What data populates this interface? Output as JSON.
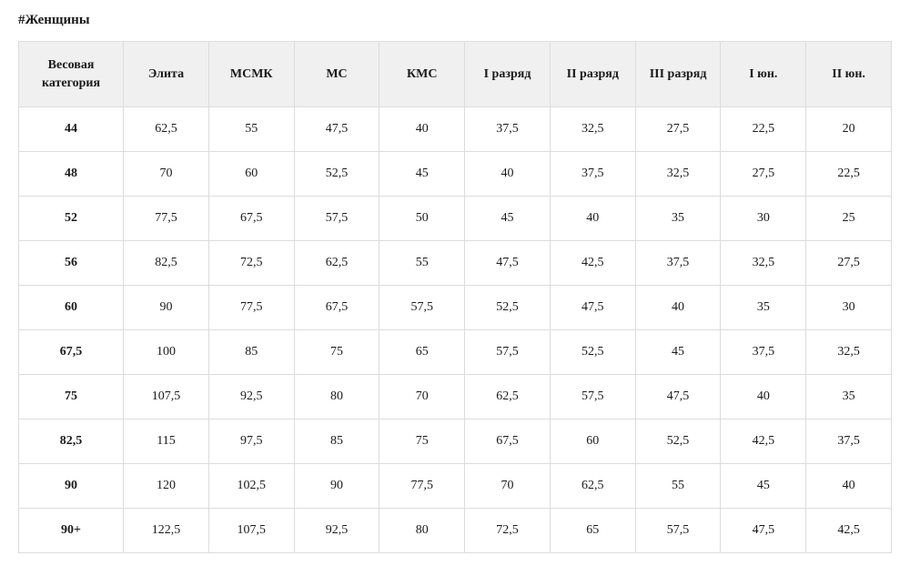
{
  "heading": "#Женщины",
  "table": {
    "columns": [
      "Весовая категория",
      "Элита",
      "МСМК",
      "МС",
      "КМС",
      "I разряд",
      "II разряд",
      "III разряд",
      "I юн.",
      "II юн."
    ],
    "rows": [
      [
        "44",
        "62,5",
        "55",
        "47,5",
        "40",
        "37,5",
        "32,5",
        "27,5",
        "22,5",
        "20"
      ],
      [
        "48",
        "70",
        "60",
        "52,5",
        "45",
        "40",
        "37,5",
        "32,5",
        "27,5",
        "22,5"
      ],
      [
        "52",
        "77,5",
        "67,5",
        "57,5",
        "50",
        "45",
        "40",
        "35",
        "30",
        "25"
      ],
      [
        "56",
        "82,5",
        "72,5",
        "62,5",
        "55",
        "47,5",
        "42,5",
        "37,5",
        "32,5",
        "27,5"
      ],
      [
        "60",
        "90",
        "77,5",
        "67,5",
        "57,5",
        "52,5",
        "47,5",
        "40",
        "35",
        "30"
      ],
      [
        "67,5",
        "100",
        "85",
        "75",
        "65",
        "57,5",
        "52,5",
        "45",
        "37,5",
        "32,5"
      ],
      [
        "75",
        "107,5",
        "92,5",
        "80",
        "70",
        "62,5",
        "57,5",
        "47,5",
        "40",
        "35"
      ],
      [
        "82,5",
        "115",
        "97,5",
        "85",
        "75",
        "67,5",
        "60",
        "52,5",
        "42,5",
        "37,5"
      ],
      [
        "90",
        "120",
        "102,5",
        "90",
        "77,5",
        "70",
        "62,5",
        "55",
        "45",
        "40"
      ],
      [
        "90+",
        "122,5",
        "107,5",
        "92,5",
        "80",
        "72,5",
        "65",
        "57,5",
        "47,5",
        "42,5"
      ]
    ],
    "header_bg": "#f0f0f0",
    "border_color": "#dcdcdc",
    "font_family": "Georgia, 'Times New Roman', serif",
    "cell_fontsize": 14,
    "heading_fontsize": 15
  }
}
